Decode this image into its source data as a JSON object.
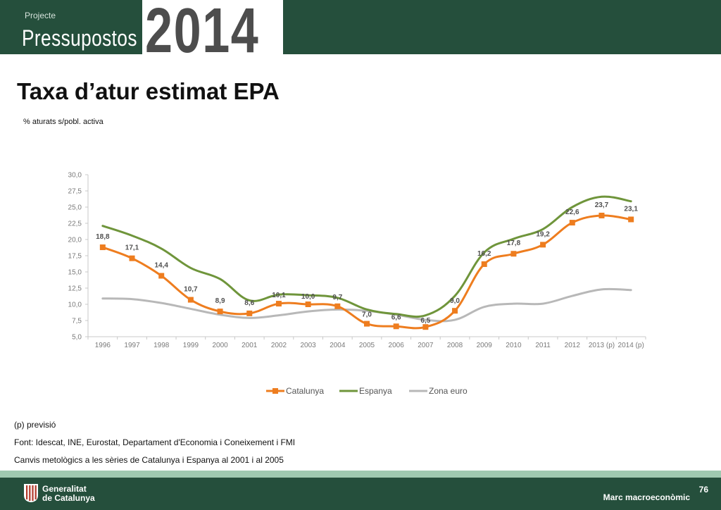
{
  "header": {
    "subtitle": "Projecte",
    "name": "Pressupostos",
    "year": "2014"
  },
  "title": "Taxa d’atur estimat EPA",
  "unit_label": "% aturats s/pobl. activa",
  "chart_data": {
    "type": "line",
    "categories": [
      "1996",
      "1997",
      "1998",
      "1999",
      "2000",
      "2001",
      "2002",
      "2003",
      "2004",
      "2005",
      "2006",
      "2007",
      "2008",
      "2009",
      "2010",
      "2011",
      "2012",
      "2013 (p)",
      "2014 (p)"
    ],
    "ylim": [
      5,
      30
    ],
    "yticks": [
      "5,0",
      "7,5",
      "10,0",
      "12,5",
      "15,0",
      "17,5",
      "20,0",
      "22,5",
      "25,0",
      "27,5",
      "30,0"
    ],
    "legend_position": "bottom",
    "grid": false,
    "series": [
      {
        "name": "Catalunya",
        "color": "#ee7d1f",
        "marker": "square",
        "values": [
          18.8,
          17.1,
          14.4,
          10.7,
          8.9,
          8.6,
          10.1,
          10.0,
          9.7,
          7.0,
          6.6,
          6.5,
          9.0,
          16.2,
          17.8,
          19.2,
          22.6,
          23.7,
          23.1
        ],
        "labels": [
          "18,8",
          "17,1",
          "14,4",
          "10,7",
          "8,9",
          "8,6",
          "10,1",
          "10,0",
          "9,7",
          "7,0",
          "6,6",
          "6,5",
          "9,0",
          "16,2",
          "17,8",
          "19,2",
          "22,6",
          "23,7",
          "23,1"
        ]
      },
      {
        "name": "Espanya",
        "color": "#6f953b",
        "values": [
          22.1,
          20.6,
          18.6,
          15.6,
          13.9,
          10.6,
          11.5,
          11.4,
          11.0,
          9.2,
          8.5,
          8.3,
          11.3,
          18.0,
          20.1,
          21.6,
          25.0,
          26.6,
          25.9
        ]
      },
      {
        "name": "Zona euro",
        "color": "#b8b8b8",
        "values": [
          10.9,
          10.8,
          10.2,
          9.3,
          8.4,
          7.9,
          8.3,
          8.9,
          9.2,
          9.0,
          8.4,
          7.6,
          7.6,
          9.6,
          10.1,
          10.1,
          11.3,
          12.3,
          12.2
        ]
      }
    ]
  },
  "notes": [
    "(p) previsió",
    "Font: Idescat, INE, Eurostat, Departament d'Economia i Coneixement i FMI",
    "Canvis metològics a les sèries de Catalunya i Espanya al 2001 i al 2005"
  ],
  "footer": {
    "org_line1": "Generalitat",
    "org_line2": "de Catalunya",
    "section": "Marc macroeconòmic",
    "page": "76"
  },
  "colors": {
    "brand_green": "#254f3c",
    "band": "#9fc9b0"
  },
  "icons": {
    "logo": "generalitat-logo-icon"
  }
}
